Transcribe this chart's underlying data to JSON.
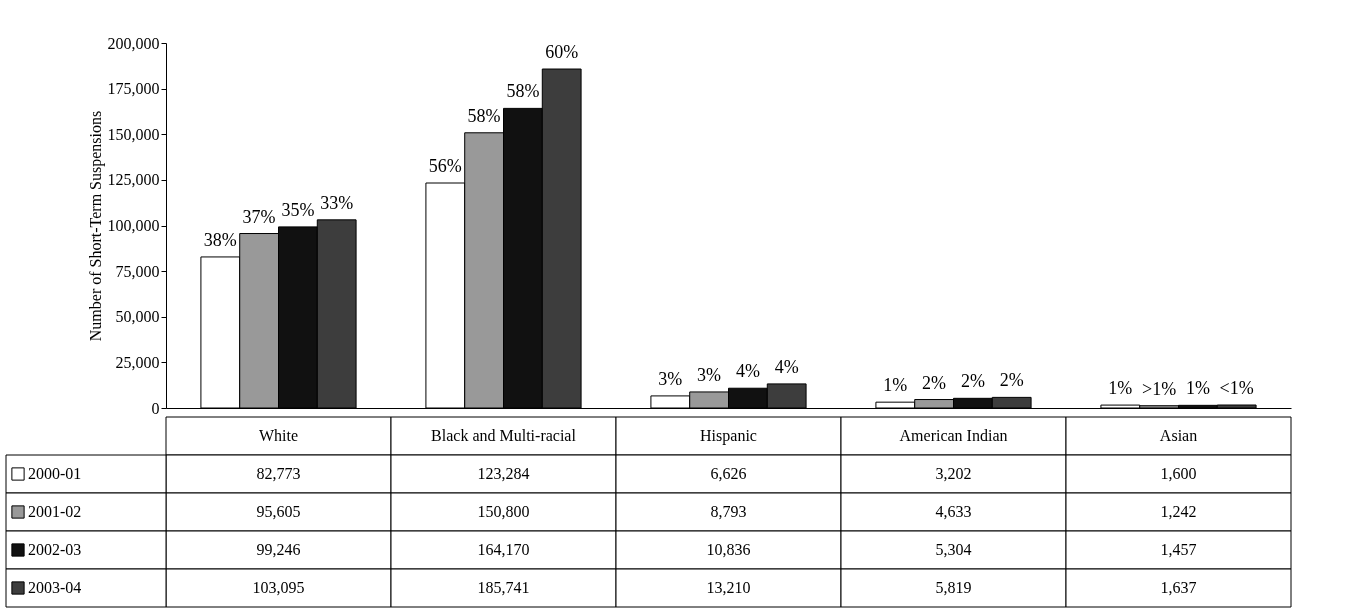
{
  "chart_data": {
    "type": "bar",
    "ylabel": "Number of Short-Term Suspensions",
    "categories": [
      "White",
      "Black and Multi-racial",
      "Hispanic",
      "American Indian",
      "Asian"
    ],
    "series": [
      {
        "name": "2000-01",
        "color": "#ffffff",
        "values": [
          82773,
          123284,
          6626,
          3202,
          1600
        ],
        "value_labels": [
          "82,773",
          "123,284",
          "6,626",
          "3,202",
          "1,600"
        ]
      },
      {
        "name": "2001-02",
        "color": "#999999",
        "values": [
          95605,
          150800,
          8793,
          4633,
          1242
        ],
        "value_labels": [
          "95,605",
          "150,800",
          "8,793",
          "4,633",
          "1,242"
        ]
      },
      {
        "name": "2002-03",
        "color": "#111111",
        "values": [
          99246,
          164170,
          10836,
          5304,
          1457
        ],
        "value_labels": [
          "99,246",
          "164,170",
          "10,836",
          "5,304",
          "1,457"
        ]
      },
      {
        "name": "2003-04",
        "color": "#3d3d3d",
        "values": [
          103095,
          185741,
          13210,
          5819,
          1637
        ],
        "value_labels": [
          "103,095",
          "185,741",
          "13,210",
          "5,819",
          "1,637"
        ]
      }
    ],
    "annotations": [
      "38%",
      "37%",
      "35%",
      "33%",
      "56%",
      "58%",
      "58%",
      "60%",
      "3%",
      "3%",
      "4%",
      "4%",
      "1%",
      "2%",
      "2%",
      "2%",
      "1%",
      ">1%",
      "1%",
      "<1%"
    ],
    "ylim": [
      0,
      200000
    ],
    "yticks": [
      {
        "value": 0,
        "label": "0"
      },
      {
        "value": 25000,
        "label": "25,000"
      },
      {
        "value": 50000,
        "label": "50,000"
      },
      {
        "value": 75000,
        "label": "75,000"
      },
      {
        "value": 100000,
        "label": "100,000"
      },
      {
        "value": 125000,
        "label": "125,000"
      },
      {
        "value": 150000,
        "label": "150,000"
      },
      {
        "value": 175000,
        "label": "175,000"
      },
      {
        "value": 200000,
        "label": "200,000"
      }
    ],
    "legend": "bottom left",
    "grid": false
  }
}
